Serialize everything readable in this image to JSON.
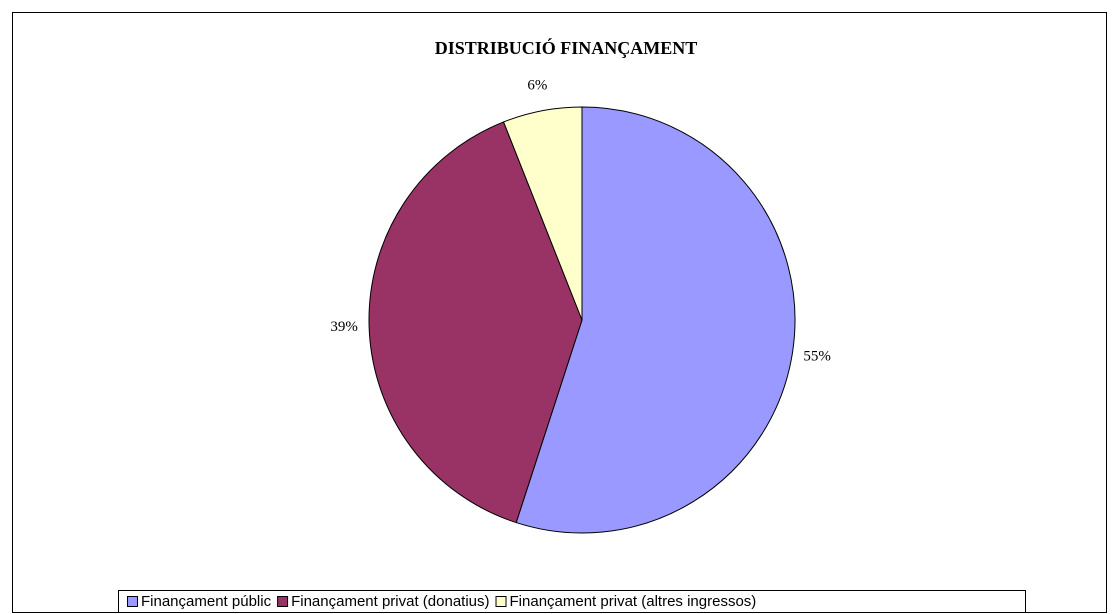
{
  "chart_data": {
    "type": "pie",
    "title": "DISTRIBUCIÓ FINANÇAMENT",
    "categories": [
      "Finançament públic",
      "Finançament privat (donatius)",
      "Finançament privat (altres ingressos)"
    ],
    "values": [
      55,
      39,
      6
    ],
    "value_labels": [
      "55%",
      "39%",
      "6%"
    ],
    "colors": [
      "#9999ff",
      "#993366",
      "#ffffcc"
    ],
    "legend": "bottom"
  }
}
